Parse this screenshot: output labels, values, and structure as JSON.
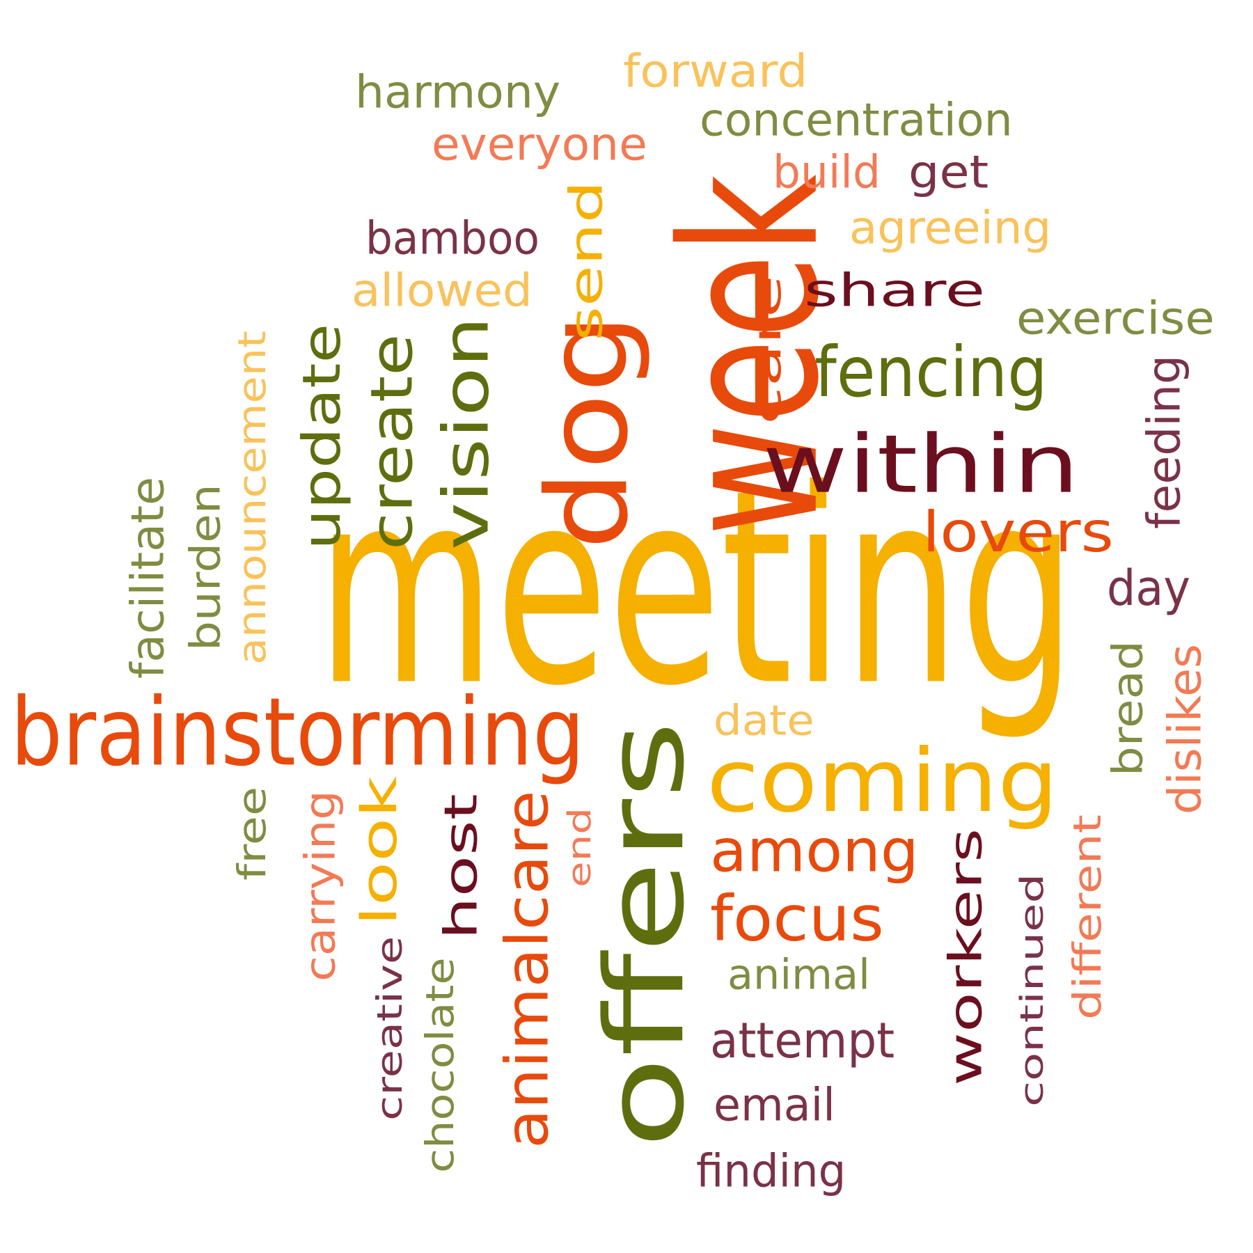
{
  "colors": {
    "gold": "#F5B000",
    "orange": "#E84A0C",
    "olive": "#5E6E0E",
    "maroon": "#6B0F1F",
    "light_orange": "#F9C25A",
    "light_olive": "#7F8C42",
    "salmon": "#F27A55",
    "plum": "#7A3247"
  },
  "words": [
    {
      "text": "meeting",
      "color": "gold"
    },
    {
      "text": "week",
      "color": "orange"
    },
    {
      "text": "offers",
      "color": "olive"
    },
    {
      "text": "within",
      "color": "maroon"
    },
    {
      "text": "brainstorming",
      "color": "orange"
    },
    {
      "text": "coming",
      "color": "gold"
    },
    {
      "text": "dog",
      "color": "orange"
    },
    {
      "text": "vision",
      "color": "olive"
    },
    {
      "text": "create",
      "color": "olive"
    },
    {
      "text": "update",
      "color": "olive"
    },
    {
      "text": "animalcare",
      "color": "orange"
    },
    {
      "text": "send",
      "color": "gold"
    },
    {
      "text": "fencing",
      "color": "olive"
    },
    {
      "text": "share",
      "color": "maroon"
    },
    {
      "text": "lovers",
      "color": "orange"
    },
    {
      "text": "among",
      "color": "orange"
    },
    {
      "text": "focus",
      "color": "orange"
    },
    {
      "text": "workers",
      "color": "maroon"
    },
    {
      "text": "host",
      "color": "maroon"
    },
    {
      "text": "look",
      "color": "gold"
    },
    {
      "text": "care",
      "color": "orange"
    },
    {
      "text": "harmony",
      "color": "light_olive"
    },
    {
      "text": "forward",
      "color": "light_orange"
    },
    {
      "text": "concentration",
      "color": "light_olive"
    },
    {
      "text": "everyone",
      "color": "salmon"
    },
    {
      "text": "build",
      "color": "salmon"
    },
    {
      "text": "get",
      "color": "plum"
    },
    {
      "text": "bamboo",
      "color": "plum"
    },
    {
      "text": "agreeing",
      "color": "light_orange"
    },
    {
      "text": "allowed",
      "color": "light_orange"
    },
    {
      "text": "exercise",
      "color": "light_olive"
    },
    {
      "text": "announcement",
      "color": "light_orange"
    },
    {
      "text": "facilitate",
      "color": "light_olive"
    },
    {
      "text": "burden",
      "color": "light_olive"
    },
    {
      "text": "feeding",
      "color": "plum"
    },
    {
      "text": "day",
      "color": "plum"
    },
    {
      "text": "bread",
      "color": "light_olive"
    },
    {
      "text": "dislikes",
      "color": "salmon"
    },
    {
      "text": "date",
      "color": "light_orange"
    },
    {
      "text": "free",
      "color": "light_olive"
    },
    {
      "text": "carrying",
      "color": "salmon"
    },
    {
      "text": "end",
      "color": "salmon"
    },
    {
      "text": "creative",
      "color": "plum"
    },
    {
      "text": "chocolate",
      "color": "light_olive"
    },
    {
      "text": "animal",
      "color": "light_olive"
    },
    {
      "text": "attempt",
      "color": "plum"
    },
    {
      "text": "email",
      "color": "plum"
    },
    {
      "text": "finding",
      "color": "plum"
    },
    {
      "text": "continued",
      "color": "plum"
    },
    {
      "text": "different",
      "color": "salmon"
    }
  ]
}
